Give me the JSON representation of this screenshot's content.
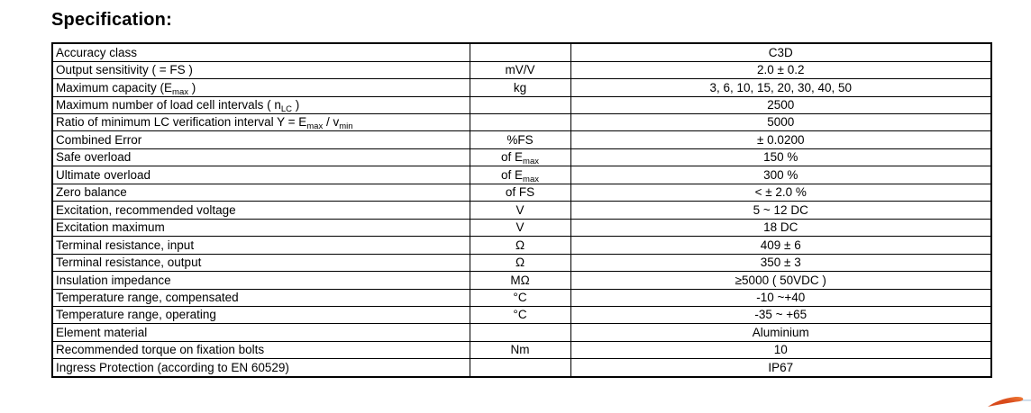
{
  "page": {
    "title": "Specification:"
  },
  "spec_table": {
    "rows": [
      {
        "label": "Accuracy class",
        "unit": "",
        "value": "C3D"
      },
      {
        "label": "Output sensitivity ( = FS )",
        "unit": "mV/V",
        "value": "2.0 ± 0.2"
      },
      {
        "label": "Maximum capacity (E_{max} )",
        "unit": "kg",
        "value": "3, 6, 10, 15, 20, 30, 40, 50"
      },
      {
        "label": "Maximum number of load cell intervals ( n_{LC} )",
        "unit": "",
        "value": "2500"
      },
      {
        "label": "Ratio of minimum LC verification interval Y = E_{max} / v_{min}",
        "unit": "",
        "value": "5000"
      },
      {
        "label": "Combined Error",
        "unit": "%FS",
        "value": "± 0.0200"
      },
      {
        "label": "Safe overload",
        "unit": "of E_{max}",
        "value": "150 %"
      },
      {
        "label": "Ultimate overload",
        "unit": "of E_{max}",
        "value": "300 %"
      },
      {
        "label": "Zero balance",
        "unit": "of FS",
        "value": "< ± 2.0 %"
      },
      {
        "label": "Excitation, recommended voltage",
        "unit": "V",
        "value": "5 ~ 12 DC"
      },
      {
        "label": "Excitation maximum",
        "unit": "V",
        "value": "18 DC"
      },
      {
        "label": "Terminal resistance, input",
        "unit": "Ω",
        "value": "409 ± 6"
      },
      {
        "label": "Terminal resistance, output",
        "unit": "Ω",
        "value": "350 ± 3"
      },
      {
        "label": "Insulation impedance",
        "unit": "MΩ",
        "value": "≥5000 ( 50VDC )"
      },
      {
        "label": "Temperature range, compensated",
        "unit": "°C",
        "value": "-10 ~+40"
      },
      {
        "label": "Temperature range, operating",
        "unit": "°C",
        "value": "-35 ~ +65"
      },
      {
        "label": "Element material",
        "unit": "",
        "value": "Aluminium"
      },
      {
        "label": "Recommended torque on fixation bolts",
        "unit": "Nm",
        "value": "10"
      },
      {
        "label": "Ingress Protection (according to EN 60529)",
        "unit": "",
        "value": "IP67"
      }
    ]
  },
  "decoration": {
    "swoosh_dark": "#D84A1B",
    "swoosh_light": "#F2823C",
    "line_blue": "#BBCFE2"
  }
}
